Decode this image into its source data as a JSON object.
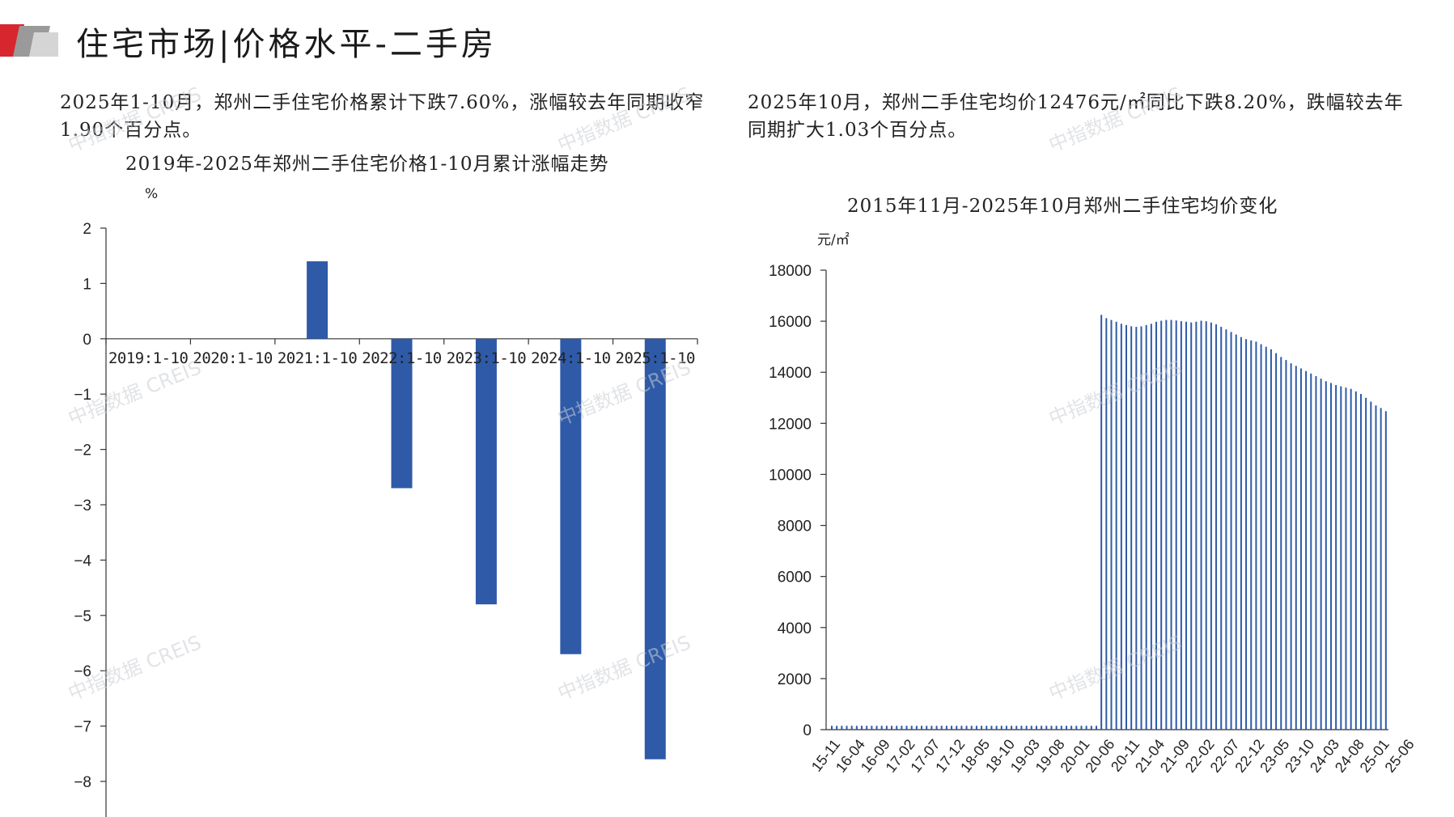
{
  "header": {
    "title": "住宅市场|价格水平-二手房"
  },
  "summary_left": "2025年1-10月，郑州二手住宅价格累计下跌7.60%，涨幅较去年同期收窄1.90个百分点。",
  "summary_right": "2025年10月，郑州二手住宅均价12476元/㎡同比下跌8.20%，跌幅较去年同期扩大1.03个百分点。",
  "watermark_text": "中指数据 CREIS",
  "colors": {
    "bar": "#2e5aa8",
    "accent_red": "#d7262e",
    "accent_gray": "#8c8c8c",
    "axis": "#333333"
  },
  "chart_data": [
    {
      "type": "bar",
      "title": "2019年-2025年郑州二手住宅价格1-10月累计涨幅走势",
      "ylabel": "%",
      "categories": [
        "2019:1-10",
        "2020:1-10",
        "2021:1-10",
        "2022:1-10",
        "2023:1-10",
        "2024:1-10",
        "2025:1-10"
      ],
      "values": [
        0,
        0,
        1.4,
        -2.7,
        -4.8,
        -5.7,
        -7.6
      ],
      "ylim": [
        -8,
        2
      ],
      "yticks": [
        2,
        1,
        0,
        -1,
        -2,
        -3,
        -4,
        -5,
        -6,
        -7,
        -8
      ],
      "grid": false,
      "legend": "none"
    },
    {
      "type": "bar",
      "title": "2015年11月-2025年10月郑州二手住宅均价变化",
      "ylabel": "元/㎡",
      "ylim": [
        0,
        18000
      ],
      "yticks": [
        0,
        2000,
        4000,
        6000,
        8000,
        10000,
        12000,
        14000,
        16000,
        18000
      ],
      "xtick_labels": [
        "15-11",
        "16-04",
        "16-09",
        "17-02",
        "17-07",
        "17-12",
        "18-05",
        "18-10",
        "19-03",
        "19-08",
        "20-01",
        "20-06",
        "20-11",
        "21-04",
        "21-09",
        "22-02",
        "22-07",
        "22-12",
        "23-05",
        "23-10",
        "24-03",
        "24-08",
        "25-01",
        "25-06"
      ],
      "start_month": "2015-11",
      "values": [
        150,
        150,
        150,
        150,
        150,
        150,
        150,
        150,
        150,
        150,
        150,
        150,
        150,
        150,
        150,
        150,
        150,
        150,
        150,
        150,
        150,
        150,
        150,
        150,
        150,
        150,
        150,
        150,
        150,
        150,
        150,
        150,
        150,
        150,
        150,
        150,
        150,
        150,
        150,
        150,
        150,
        150,
        150,
        150,
        150,
        150,
        150,
        150,
        150,
        150,
        150,
        150,
        150,
        150,
        16250,
        16120,
        16050,
        15980,
        15900,
        15850,
        15800,
        15780,
        15800,
        15850,
        15900,
        15980,
        16020,
        16050,
        16050,
        16030,
        16000,
        15980,
        15950,
        15980,
        16020,
        16000,
        15950,
        15880,
        15780,
        15680,
        15580,
        15480,
        15380,
        15300,
        15250,
        15200,
        15100,
        15000,
        14900,
        14750,
        14600,
        14480,
        14350,
        14250,
        14150,
        14050,
        13950,
        13850,
        13750,
        13650,
        13580,
        13500,
        13450,
        13400,
        13350,
        13250,
        13150,
        13000,
        12850,
        12700,
        12600,
        12476
      ],
      "grid": false,
      "legend": "none"
    }
  ]
}
